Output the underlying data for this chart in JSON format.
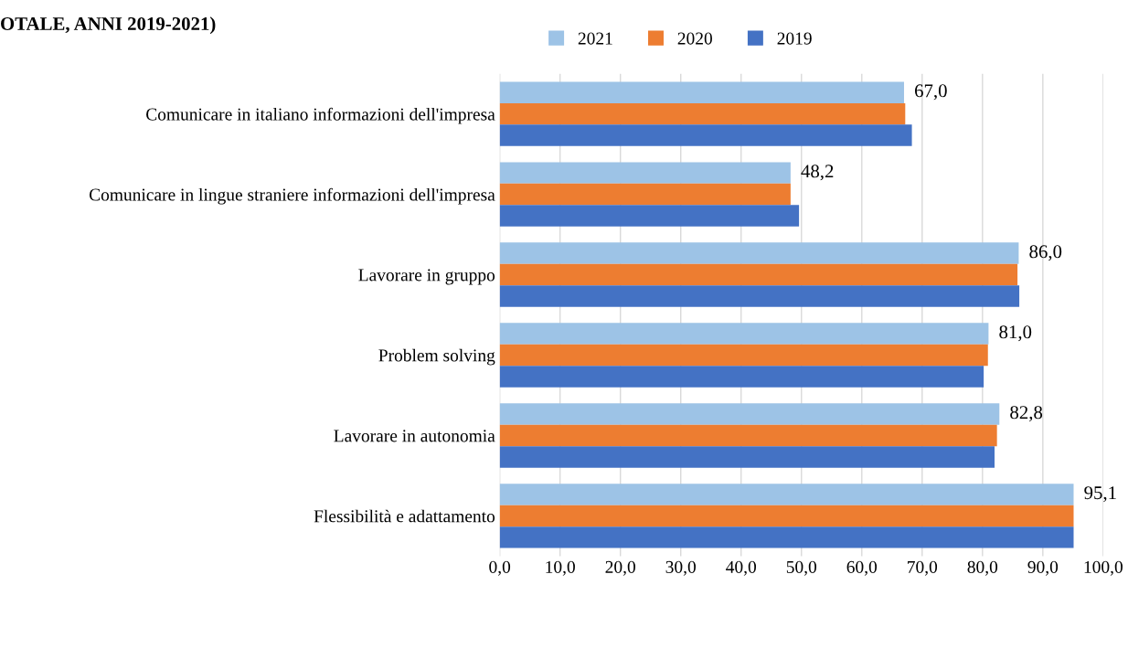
{
  "chart_data": {
    "type": "bar",
    "orientation": "horizontal",
    "title": "OTALE, ANNI 2019-2021)",
    "categories": [
      "Comunicare in italiano informazioni dell'impresa",
      "Comunicare in lingue straniere informazioni dell'impresa",
      "Lavorare in gruppo",
      "Problem solving",
      "Lavorare in autonomia",
      "Flessibilità e adattamento"
    ],
    "series": [
      {
        "name": "2021",
        "color": "#9dc3e6",
        "values": [
          67.0,
          48.2,
          86.0,
          81.0,
          82.8,
          95.1
        ],
        "value_labels": [
          "67,0",
          "48,2",
          "86,0",
          "81,0",
          "82,8",
          "95,1"
        ]
      },
      {
        "name": "2020",
        "color": "#ed7d31",
        "values": [
          67.2,
          48.2,
          85.8,
          80.9,
          82.4,
          95.1
        ]
      },
      {
        "name": "2019",
        "color": "#4472c4",
        "values": [
          68.3,
          49.6,
          86.1,
          80.2,
          82.0,
          95.1
        ]
      }
    ],
    "xlim": [
      0,
      100
    ],
    "xticks": [
      {
        "value": 0,
        "label": "0,0"
      },
      {
        "value": 10,
        "label": "10,0"
      },
      {
        "value": 20,
        "label": "20,0"
      },
      {
        "value": 30,
        "label": "30,0"
      },
      {
        "value": 40,
        "label": "40,0"
      },
      {
        "value": 50,
        "label": "50,0"
      },
      {
        "value": 60,
        "label": "60,0"
      },
      {
        "value": 70,
        "label": "70,0"
      },
      {
        "value": 80,
        "label": "80,0"
      },
      {
        "value": 90,
        "label": "90,0"
      },
      {
        "value": 100,
        "label": "100,0"
      }
    ],
    "grid": "x",
    "legend": "top"
  }
}
